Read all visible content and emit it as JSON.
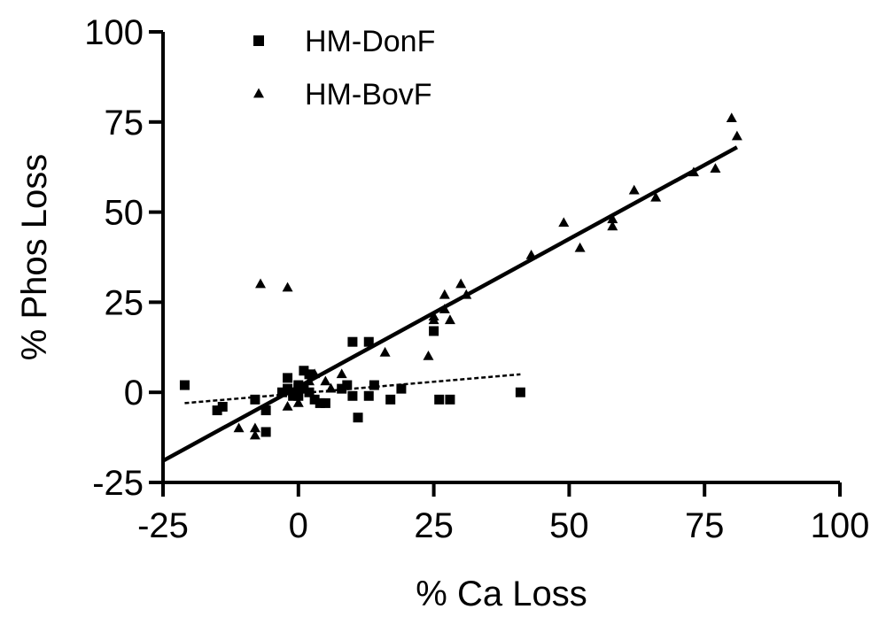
{
  "chart_data": {
    "type": "scatter",
    "title": "",
    "xlabel": "% Ca Loss",
    "ylabel": "% Phos Loss",
    "xlim": [
      -25,
      100
    ],
    "ylim": [
      -25,
      100
    ],
    "xticks": [
      -25,
      0,
      25,
      50,
      75,
      100
    ],
    "yticks": [
      -25,
      0,
      25,
      50,
      75,
      100
    ],
    "grid": false,
    "legend_position": "top-left",
    "series": [
      {
        "name": "HM-DonF",
        "marker": "square",
        "color": "#000000",
        "points": [
          [
            -21,
            2
          ],
          [
            -15,
            -5
          ],
          [
            -14,
            -4
          ],
          [
            -8,
            -2
          ],
          [
            -6,
            -11
          ],
          [
            -6,
            -5
          ],
          [
            -3,
            0
          ],
          [
            -2,
            1
          ],
          [
            -2,
            4
          ],
          [
            -1,
            0
          ],
          [
            -1,
            -1
          ],
          [
            0,
            2
          ],
          [
            0,
            1
          ],
          [
            0,
            -1
          ],
          [
            1,
            6
          ],
          [
            1,
            1
          ],
          [
            2,
            5
          ],
          [
            2,
            0
          ],
          [
            3,
            -2
          ],
          [
            4,
            -3
          ],
          [
            5,
            -3
          ],
          [
            8,
            1
          ],
          [
            9,
            2
          ],
          [
            10,
            14
          ],
          [
            10,
            -1
          ],
          [
            11,
            -7
          ],
          [
            13,
            14
          ],
          [
            13,
            -1
          ],
          [
            14,
            2
          ],
          [
            17,
            -2
          ],
          [
            19,
            1
          ],
          [
            25,
            17
          ],
          [
            26,
            -2
          ],
          [
            28,
            -2
          ],
          [
            41,
            0
          ]
        ]
      },
      {
        "name": "HM-BovF",
        "marker": "triangle",
        "color": "#000000",
        "points": [
          [
            -7,
            30
          ],
          [
            -2,
            29
          ],
          [
            -11,
            -10
          ],
          [
            -8,
            -10
          ],
          [
            -8,
            -12
          ],
          [
            -2,
            -4
          ],
          [
            0,
            -3
          ],
          [
            2,
            3
          ],
          [
            3,
            5
          ],
          [
            5,
            3
          ],
          [
            6,
            1
          ],
          [
            8,
            5
          ],
          [
            16,
            11
          ],
          [
            24,
            10
          ],
          [
            25,
            20
          ],
          [
            25,
            21
          ],
          [
            27,
            27
          ],
          [
            27,
            23
          ],
          [
            28,
            20
          ],
          [
            30,
            30
          ],
          [
            31,
            27
          ],
          [
            43,
            38
          ],
          [
            49,
            47
          ],
          [
            52,
            40
          ],
          [
            58,
            48
          ],
          [
            58,
            46
          ],
          [
            62,
            56
          ],
          [
            66,
            54
          ],
          [
            73,
            61
          ],
          [
            77,
            62
          ],
          [
            80,
            76
          ],
          [
            81,
            71
          ]
        ]
      }
    ],
    "fit_lines": [
      {
        "name": "HM-BovF fit",
        "style": "solid",
        "x": [
          -25,
          81
        ],
        "y": [
          -19,
          68
        ]
      },
      {
        "name": "HM-DonF fit",
        "style": "dashed",
        "x": [
          -21,
          41
        ],
        "y": [
          -3,
          5
        ]
      }
    ]
  }
}
